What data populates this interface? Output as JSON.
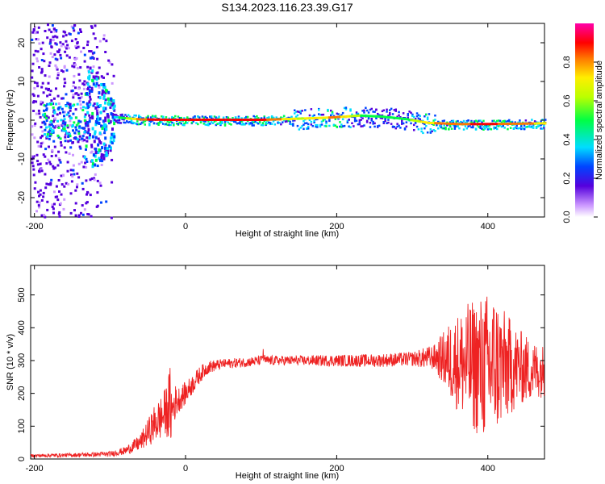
{
  "title": "S134.2023.116.23.39.G17",
  "chart_data": [
    {
      "type": "heatmap",
      "xlabel": "Height of straight line (km)",
      "ylabel": "Frequency (Hz)",
      "xlim": [
        -205,
        475
      ],
      "ylim": [
        -25,
        25
      ],
      "xticks": [
        -200,
        0,
        200,
        400
      ],
      "yticks": [
        -20,
        -10,
        0,
        10,
        20
      ],
      "colorbar": {
        "label": "Normalized spectral amplitude",
        "range": [
          0,
          1
        ],
        "ticks": [
          0.0,
          0.2,
          0.4,
          0.6,
          0.8
        ]
      },
      "ridge": {
        "x": [
          -95,
          -80,
          -60,
          -20,
          0,
          50,
          100,
          150,
          180,
          200,
          230,
          260,
          290,
          320,
          360,
          400,
          440,
          475
        ],
        "y": [
          0.8,
          0.5,
          0.2,
          0.1,
          0.1,
          0.1,
          0.1,
          0.4,
          0.6,
          0.8,
          1.2,
          0.9,
          0.3,
          -0.7,
          -1.0,
          -1.0,
          -0.9,
          -0.8
        ],
        "amplitude": [
          0.3,
          0.5,
          0.8,
          0.9,
          0.9,
          0.9,
          0.85,
          0.6,
          0.7,
          0.75,
          0.5,
          0.4,
          0.45,
          0.7,
          0.8,
          0.85,
          0.75,
          0.7
        ]
      }
    },
    {
      "type": "line",
      "xlabel": "Height of straight line (km)",
      "ylabel": "SNR (10 * v/v)",
      "xlim": [
        -205,
        475
      ],
      "ylim": [
        0,
        590
      ],
      "xticks": [
        -200,
        0,
        200,
        400
      ],
      "yticks": [
        0,
        100,
        200,
        300,
        400,
        500
      ],
      "color": "#ee2222",
      "envelope": {
        "x": [
          -205,
          -150,
          -100,
          -80,
          -60,
          -50,
          -40,
          -30,
          -25,
          -20,
          -18,
          -15,
          -10,
          0,
          10,
          20,
          30,
          50,
          80,
          100,
          102,
          105,
          150,
          200,
          250,
          300,
          330,
          350,
          370,
          390,
          400,
          410,
          420,
          440,
          460,
          475
        ],
        "center": [
          10,
          12,
          15,
          25,
          50,
          80,
          110,
          130,
          150,
          160,
          140,
          170,
          180,
          200,
          230,
          260,
          280,
          290,
          295,
          300,
          320,
          300,
          300,
          300,
          300,
          305,
          310,
          300,
          290,
          280,
          280,
          290,
          280,
          280,
          270,
          270
        ],
        "spread": [
          5,
          6,
          8,
          12,
          25,
          40,
          60,
          70,
          80,
          130,
          80,
          60,
          40,
          35,
          30,
          25,
          20,
          15,
          15,
          15,
          25,
          15,
          15,
          18,
          20,
          22,
          40,
          120,
          180,
          220,
          230,
          220,
          180,
          120,
          90,
          80
        ]
      }
    }
  ]
}
